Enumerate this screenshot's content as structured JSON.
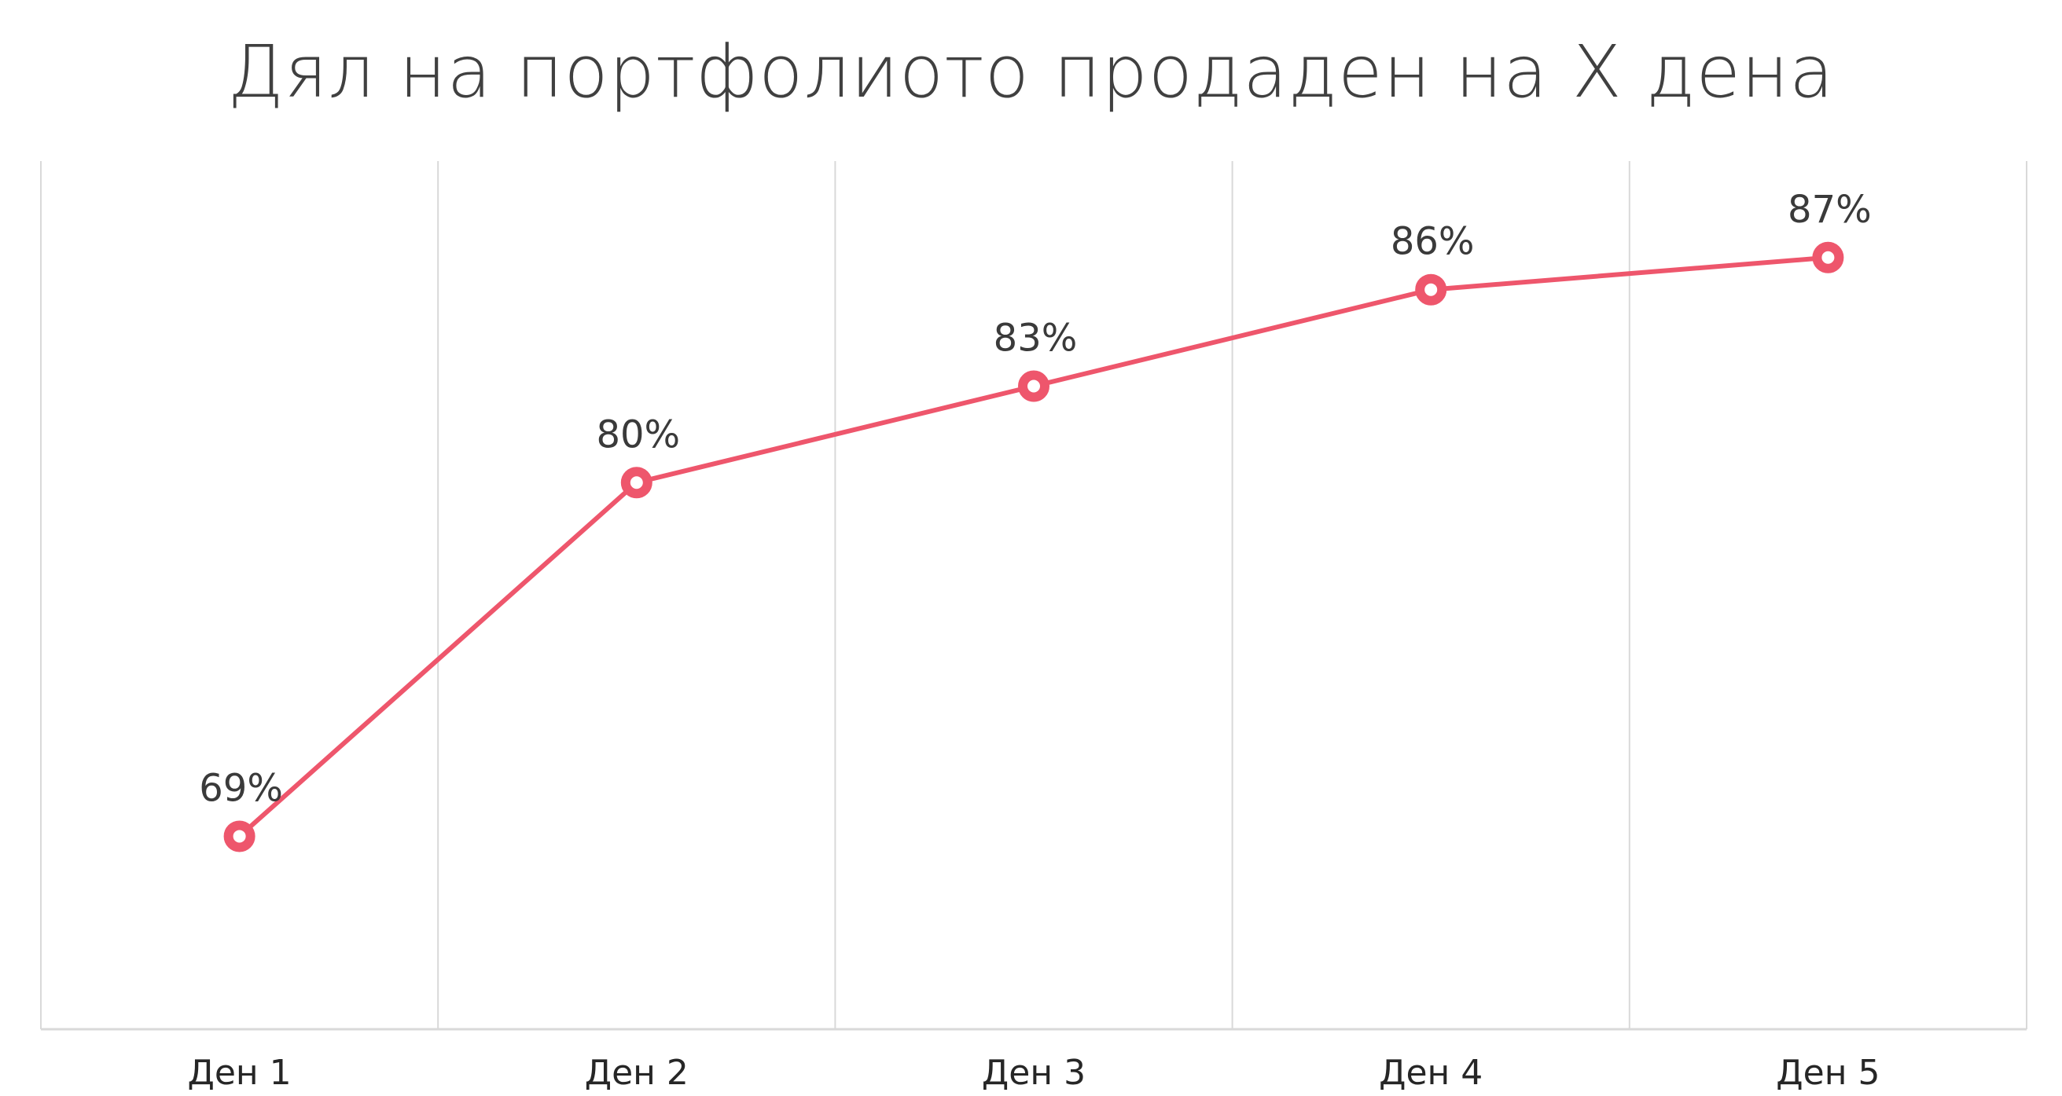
{
  "chart_data": {
    "type": "line",
    "title": "Дял на портфолиото продаден на X дена",
    "categories": [
      "Ден 1",
      "Ден 2",
      "Ден 3",
      "Ден 4",
      "Ден 5"
    ],
    "values": [
      69,
      80,
      83,
      86,
      87
    ],
    "data_labels": [
      "69%",
      "80%",
      "83%",
      "86%",
      "87%"
    ],
    "ylim": [
      63,
      90
    ],
    "grid": "vertical",
    "legend": "none",
    "line_color": "#EE566C",
    "grid_color": "#D9D9D9"
  }
}
